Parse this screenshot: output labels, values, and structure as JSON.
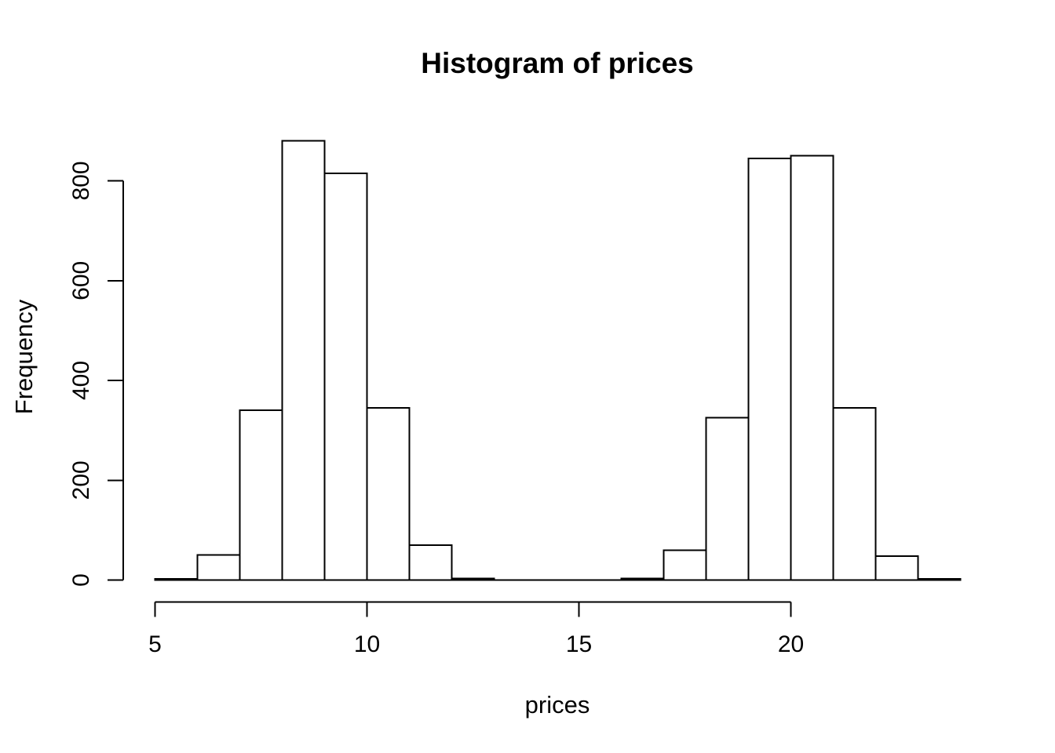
{
  "figure": {
    "background_color": "#ffffff",
    "foreground_color": "#000000"
  },
  "chart_data": {
    "type": "bar",
    "subtype": "histogram",
    "title": "Histogram of prices",
    "xlabel": "prices",
    "ylabel": "Frequency",
    "bin_width": 1,
    "bin_edges": [
      5,
      6,
      7,
      8,
      9,
      10,
      11,
      12,
      13,
      14,
      15,
      16,
      17,
      18,
      19,
      20,
      21,
      22,
      23,
      24
    ],
    "frequencies": [
      2,
      50,
      340,
      880,
      815,
      345,
      70,
      3,
      0,
      0,
      0,
      3,
      60,
      325,
      845,
      850,
      345,
      48,
      2
    ],
    "x_ticks": [
      5,
      10,
      15,
      20
    ],
    "y_ticks": [
      0,
      200,
      400,
      600,
      800
    ],
    "xlim": [
      5,
      24
    ],
    "ylim": [
      0,
      880
    ],
    "grid": false,
    "legend": null,
    "bar_fill": "#ffffff",
    "bar_stroke": "#000000",
    "axis_color": "#000000"
  }
}
